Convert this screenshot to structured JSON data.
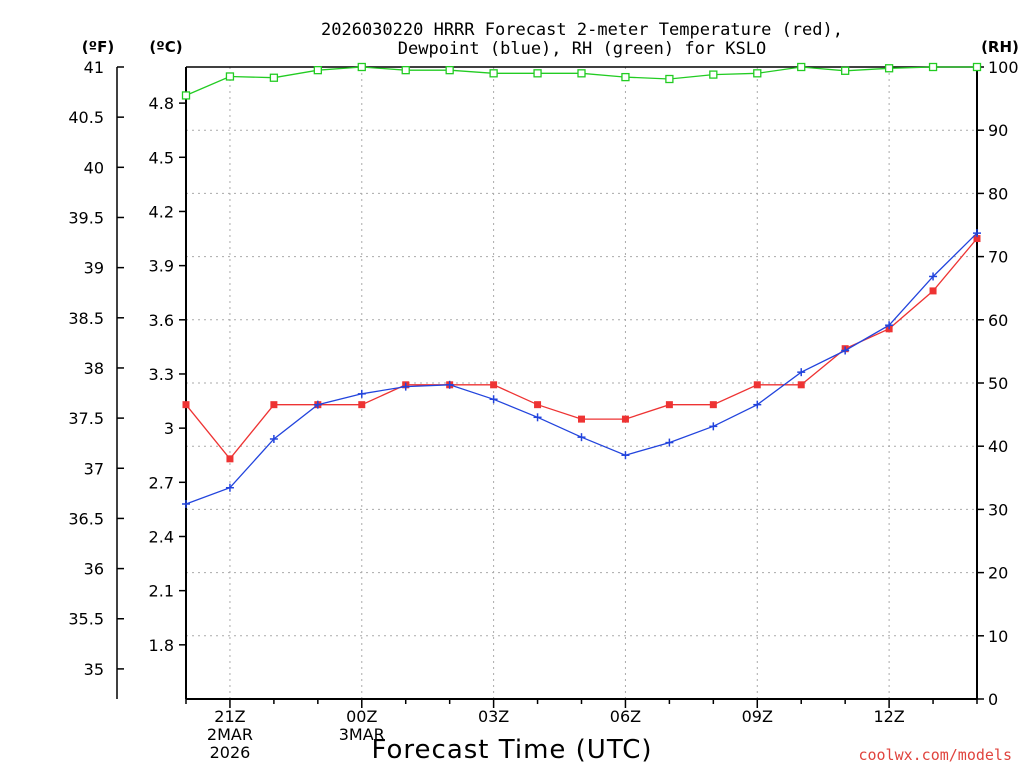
{
  "chart_data": {
    "type": "line",
    "title_line1": "2026030220 HRRR Forecast 2-meter Temperature (red),",
    "title_line2": "Dewpoint (blue), RH (green) for KSLO",
    "xlabel": "Forecast Time (UTC)",
    "credit": "coolwx.com/models",
    "units": {
      "left_f": "(ºF)",
      "left_c": "(ºC)",
      "right": "(RH)"
    },
    "x_range": [
      0,
      18
    ],
    "c_range": [
      1.5,
      5.0
    ],
    "rh_range": [
      0,
      100
    ],
    "x_ticks": [
      {
        "x": 1,
        "lines": [
          "21Z",
          "2MAR",
          "2026"
        ]
      },
      {
        "x": 4,
        "lines": [
          "00Z",
          "3MAR"
        ]
      },
      {
        "x": 7,
        "lines": [
          "03Z"
        ]
      },
      {
        "x": 10,
        "lines": [
          "06Z"
        ]
      },
      {
        "x": 13,
        "lines": [
          "09Z"
        ]
      },
      {
        "x": 16,
        "lines": [
          "12Z"
        ]
      }
    ],
    "c_ticks": [
      "1.8",
      "2.1",
      "2.4",
      "2.7",
      "3",
      "3.3",
      "3.6",
      "3.9",
      "4.2",
      "4.5",
      "4.8"
    ],
    "f_ticks": [
      "35",
      "35.5",
      "36",
      "36.5",
      "37",
      "37.5",
      "38",
      "38.5",
      "39",
      "39.5",
      "40",
      "40.5",
      "41"
    ],
    "rh_ticks": [
      "0",
      "10",
      "20",
      "30",
      "40",
      "50",
      "60",
      "70",
      "80",
      "90",
      "100"
    ],
    "series": [
      {
        "name": "Temperature",
        "axis": "celsius",
        "color": "#ee3333",
        "marker": "filled-square",
        "x": [
          0,
          1,
          2,
          3,
          4,
          5,
          6,
          7,
          8,
          9,
          10,
          11,
          12,
          13,
          14,
          15,
          16,
          17,
          18
        ],
        "values": [
          3.13,
          2.83,
          3.13,
          3.13,
          3.13,
          3.24,
          3.24,
          3.24,
          3.13,
          3.05,
          3.05,
          3.13,
          3.13,
          3.24,
          3.24,
          3.44,
          3.55,
          3.76,
          4.05
        ]
      },
      {
        "name": "Dewpoint",
        "axis": "celsius",
        "color": "#2244dd",
        "marker": "plus",
        "x": [
          0,
          1,
          2,
          3,
          4,
          5,
          6,
          7,
          8,
          9,
          10,
          11,
          12,
          13,
          14,
          15,
          16,
          17,
          18
        ],
        "values": [
          2.58,
          2.67,
          2.94,
          3.13,
          3.19,
          3.23,
          3.24,
          3.16,
          3.06,
          2.95,
          2.85,
          2.92,
          3.01,
          3.13,
          3.31,
          3.43,
          3.57,
          3.84,
          4.08
        ]
      },
      {
        "name": "RH",
        "axis": "rh",
        "color": "#22cc22",
        "marker": "open-square",
        "x": [
          0,
          1,
          2,
          3,
          4,
          5,
          6,
          7,
          8,
          9,
          10,
          11,
          12,
          13,
          14,
          15,
          16,
          17,
          18
        ],
        "values": [
          95.5,
          98.5,
          98.3,
          99.5,
          100,
          99.5,
          99.5,
          99.0,
          99.0,
          99.0,
          98.4,
          98.1,
          98.8,
          99.0,
          100,
          99.4,
          99.8,
          100,
          100
        ]
      }
    ]
  }
}
